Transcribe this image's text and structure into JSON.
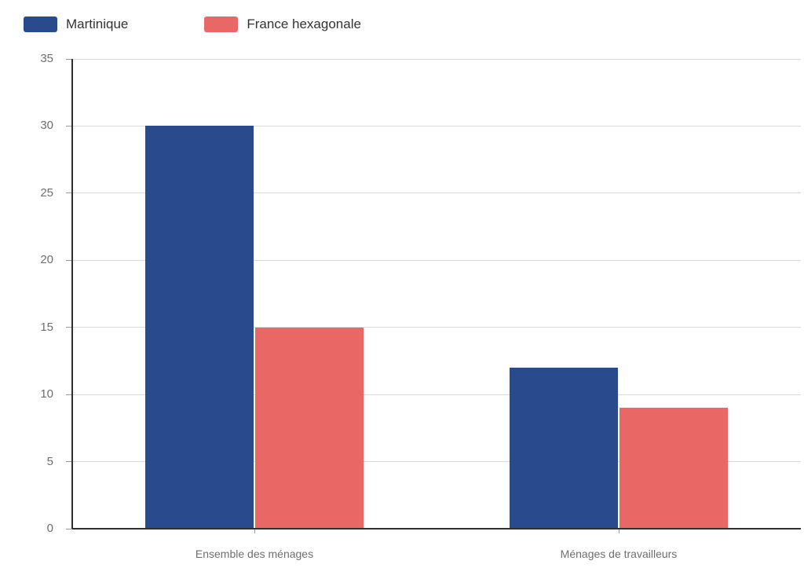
{
  "chart_data": {
    "type": "bar",
    "title": "",
    "categories": [
      "Ensemble des ménages",
      "Ménages de travailleurs"
    ],
    "series": [
      {
        "name": "Martinique",
        "color": "#294a8d",
        "values": [
          30,
          12
        ]
      },
      {
        "name": "France hexagonale",
        "color": "#e96764",
        "values": [
          15,
          9
        ]
      }
    ],
    "xlabel": "",
    "ylabel": "",
    "ylim": [
      0,
      35
    ],
    "yticks": [
      0,
      5,
      10,
      15,
      20,
      25,
      30,
      35
    ],
    "grid": true,
    "legend_position": "top-left"
  },
  "styles": {
    "background": "#ffffff",
    "grid_color": "#d9d9d9",
    "axis_color": "#2f2f2f",
    "tick_color": "#999999",
    "tick_label_color": "#6e6e6e",
    "category_label_color": "#6e6e6e",
    "legend_text_color": "#333333"
  }
}
